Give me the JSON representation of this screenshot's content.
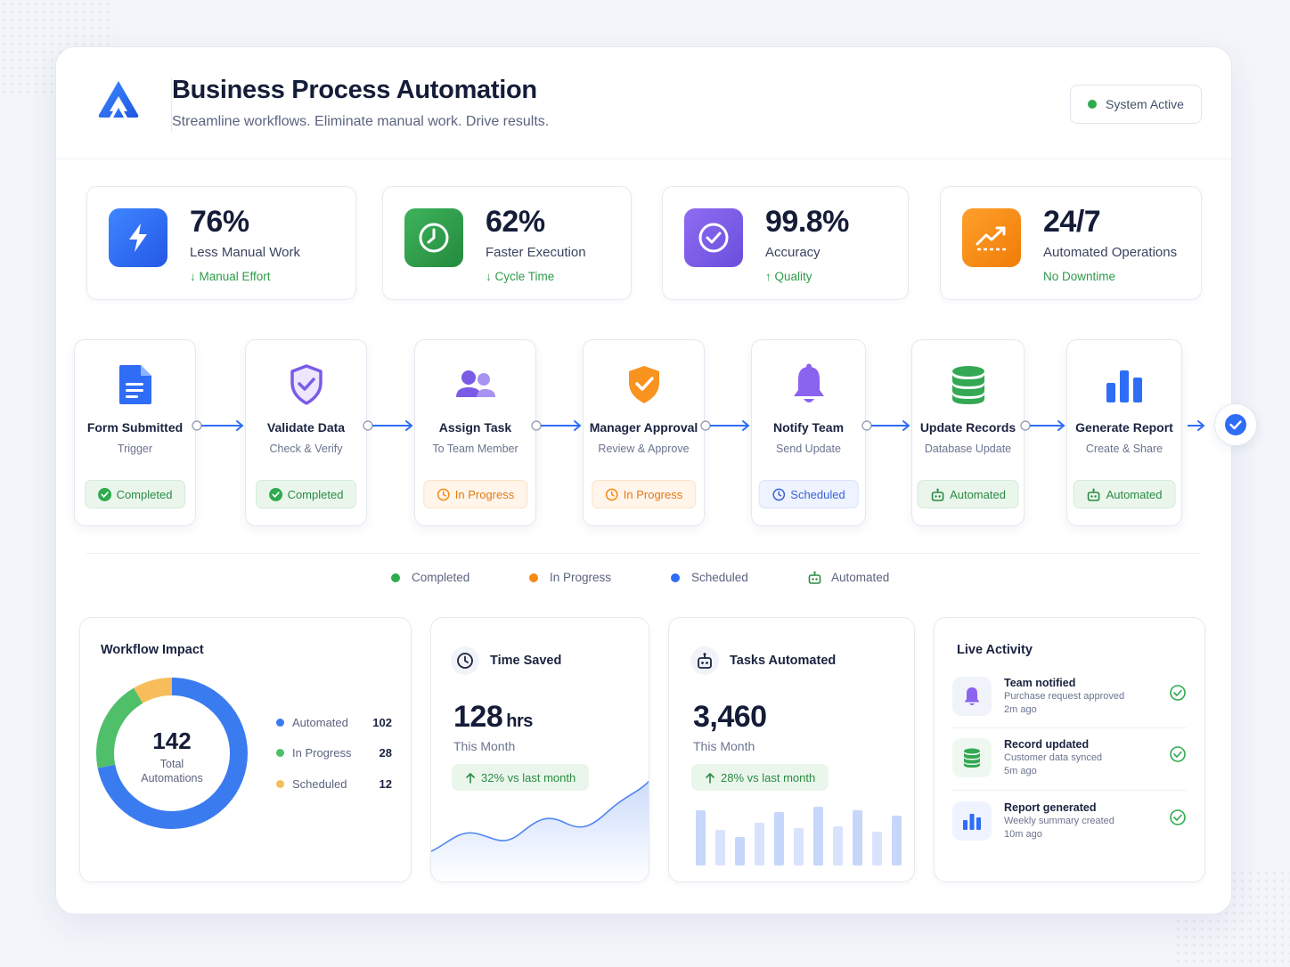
{
  "header": {
    "title": "Business Process Automation",
    "subtitle": "Streamline workflows. Eliminate manual work. Drive results.",
    "status": "System Active"
  },
  "kpis": [
    {
      "value": "76%",
      "label": "Less Manual Work",
      "sub": "↓ Manual Effort",
      "icon": "lightning-icon",
      "color": "#2f6df6"
    },
    {
      "value": "62%",
      "label": "Faster Execution",
      "sub": "↓ Cycle Time",
      "icon": "clock-icon",
      "color": "#2f9d48"
    },
    {
      "value": "99.8%",
      "label": "Accuracy",
      "sub": "↑ Quality",
      "icon": "check-circle-icon",
      "color": "#7b5be6"
    },
    {
      "value": "24/7",
      "label": "Automated Operations",
      "sub": "No Downtime",
      "icon": "trend-up-icon",
      "color": "#f58a12"
    }
  ],
  "steps": [
    {
      "name": "Form Submitted",
      "desc": "Trigger",
      "status": "Completed",
      "icon": "document-icon"
    },
    {
      "name": "Validate Data",
      "desc": "Check & Verify",
      "status": "Completed",
      "icon": "shield-check-icon"
    },
    {
      "name": "Assign Task",
      "desc": "To Team Member",
      "status": "In Progress",
      "icon": "users-icon"
    },
    {
      "name": "Manager Approval",
      "desc": "Review & Approve",
      "status": "In Progress",
      "icon": "shield-approve-icon"
    },
    {
      "name": "Notify Team",
      "desc": "Send Update",
      "status": "Scheduled",
      "icon": "bell-icon"
    },
    {
      "name": "Update Records",
      "desc": "Database Update",
      "status": "Automated",
      "icon": "database-icon"
    },
    {
      "name": "Generate Report",
      "desc": "Create & Share",
      "status": "Automated",
      "icon": "bar-chart-icon"
    }
  ],
  "legend": [
    "Completed",
    "In Progress",
    "Scheduled",
    "Automated"
  ],
  "colors": {
    "completed": "#2eaa4f",
    "progress": "#f58a12",
    "scheduled": "#2f6df6",
    "automated": "#2a8a43"
  },
  "impact": {
    "title": "Workflow Impact",
    "total": "142",
    "total_label_1": "Total",
    "total_label_2": "Automations",
    "items": [
      {
        "label": "Automated",
        "value": "102",
        "color": "#3b7bf0"
      },
      {
        "label": "In Progress",
        "value": "28",
        "color": "#4fbf6a"
      },
      {
        "label": "Scheduled",
        "value": "12",
        "color": "#f7bd5a"
      }
    ]
  },
  "time_saved": {
    "title": "Time Saved",
    "value": "128",
    "unit": "hrs",
    "period": "This Month",
    "growth": "32% vs last month"
  },
  "tasks": {
    "title": "Tasks Automated",
    "value": "3,460",
    "period": "This Month",
    "growth": "28% vs last month"
  },
  "activity": {
    "title": "Live Activity",
    "items": [
      {
        "title": "Team notified",
        "desc": "Purchase request approved",
        "time": "2m ago",
        "icon": "bell-icon"
      },
      {
        "title": "Record updated",
        "desc": "Customer data synced",
        "time": "5m ago",
        "icon": "database-icon"
      },
      {
        "title": "Report generated",
        "desc": "Weekly summary created",
        "time": "10m ago",
        "icon": "bar-chart-icon"
      }
    ]
  }
}
